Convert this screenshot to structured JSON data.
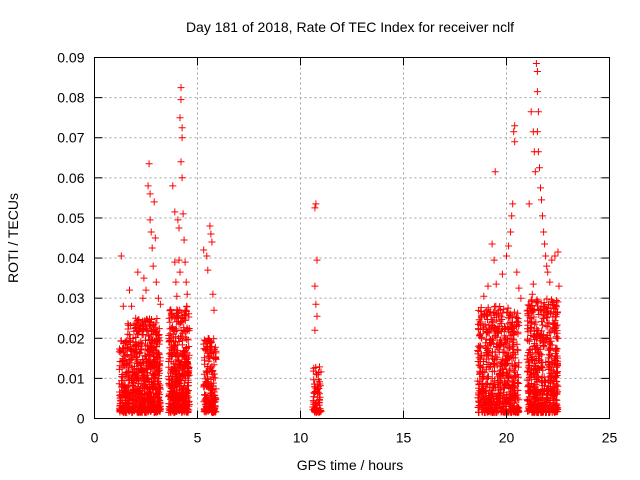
{
  "chart_data": {
    "type": "scatter",
    "title": "Day 181 of 2018, Rate Of TEC Index for receiver nclf",
    "xlabel": "GPS time / hours",
    "ylabel": "ROTI / TECUs",
    "xlim": [
      0,
      25
    ],
    "ylim": [
      0,
      0.09
    ],
    "xticks": [
      0,
      5,
      10,
      15,
      20,
      25
    ],
    "yticks": [
      0,
      0.01,
      0.02,
      0.03,
      0.04,
      0.05,
      0.06,
      0.07,
      0.08,
      0.09
    ],
    "ytick_labels": [
      "0",
      "0.01",
      "0.02",
      "0.03",
      "0.04",
      "0.05",
      "0.06",
      "0.07",
      "0.08",
      "0.09"
    ],
    "xtick_labels": [
      "0",
      "5",
      "10",
      "15",
      "20",
      "25"
    ],
    "grid": true,
    "marker": "+",
    "color": "#ff0000",
    "clusters": [
      {
        "x_range": [
          1.2,
          1.6
        ],
        "y_max": 0.02,
        "count": 120
      },
      {
        "x_range": [
          1.6,
          2.0
        ],
        "y_max": 0.024,
        "count": 120
      },
      {
        "x_range": [
          2.0,
          3.2
        ],
        "y_max": 0.025,
        "count": 480
      },
      {
        "x_range": [
          3.6,
          4.6
        ],
        "y_max": 0.028,
        "count": 420
      },
      {
        "x_range": [
          5.3,
          5.9
        ],
        "y_max": 0.02,
        "count": 180
      },
      {
        "x_range": [
          10.6,
          11.0
        ],
        "y_max": 0.013,
        "count": 70
      },
      {
        "x_range": [
          18.6,
          19.6
        ],
        "y_max": 0.028,
        "count": 300
      },
      {
        "x_range": [
          19.6,
          20.6
        ],
        "y_max": 0.028,
        "count": 320
      },
      {
        "x_range": [
          21.0,
          22.5
        ],
        "y_max": 0.03,
        "count": 560
      }
    ],
    "sparse_points": [
      [
        1.3,
        0.0405
      ],
      [
        1.4,
        0.028
      ],
      [
        1.7,
        0.032
      ],
      [
        1.8,
        0.028
      ],
      [
        2.0,
        0.025
      ],
      [
        2.1,
        0.0365
      ],
      [
        2.1,
        0.0245
      ],
      [
        2.35,
        0.03
      ],
      [
        2.4,
        0.035
      ],
      [
        2.5,
        0.032
      ],
      [
        2.6,
        0.058
      ],
      [
        2.65,
        0.0635
      ],
      [
        2.7,
        0.056
      ],
      [
        2.7,
        0.0495
      ],
      [
        2.75,
        0.0465
      ],
      [
        2.8,
        0.0425
      ],
      [
        2.85,
        0.038
      ],
      [
        2.9,
        0.054
      ],
      [
        2.95,
        0.045
      ],
      [
        3.0,
        0.034
      ],
      [
        3.1,
        0.03
      ],
      [
        3.2,
        0.0285
      ],
      [
        3.8,
        0.058
      ],
      [
        3.9,
        0.0515
      ],
      [
        3.9,
        0.039
      ],
      [
        3.95,
        0.034
      ],
      [
        4.0,
        0.0305
      ],
      [
        4.05,
        0.0495
      ],
      [
        4.1,
        0.0475
      ],
      [
        4.1,
        0.0395
      ],
      [
        4.15,
        0.0365
      ],
      [
        4.15,
        0.075
      ],
      [
        4.2,
        0.0825
      ],
      [
        4.2,
        0.0795
      ],
      [
        4.25,
        0.0725
      ],
      [
        4.25,
        0.07
      ],
      [
        4.2,
        0.064
      ],
      [
        4.25,
        0.06
      ],
      [
        4.3,
        0.051
      ],
      [
        4.35,
        0.0445
      ],
      [
        4.4,
        0.039
      ],
      [
        4.45,
        0.034
      ],
      [
        4.5,
        0.031
      ],
      [
        5.3,
        0.042
      ],
      [
        5.45,
        0.0405
      ],
      [
        5.5,
        0.037
      ],
      [
        5.6,
        0.048
      ],
      [
        5.65,
        0.046
      ],
      [
        5.7,
        0.044
      ],
      [
        5.75,
        0.031
      ],
      [
        5.8,
        0.027
      ],
      [
        10.7,
        0.0525
      ],
      [
        10.75,
        0.0535
      ],
      [
        10.8,
        0.0395
      ],
      [
        10.7,
        0.033
      ],
      [
        10.75,
        0.0285
      ],
      [
        10.8,
        0.0255
      ],
      [
        10.7,
        0.022
      ],
      [
        18.9,
        0.0305
      ],
      [
        19.1,
        0.033
      ],
      [
        19.3,
        0.0435
      ],
      [
        19.4,
        0.0395
      ],
      [
        19.45,
        0.0615
      ],
      [
        19.5,
        0.0335
      ],
      [
        19.8,
        0.036
      ],
      [
        20.0,
        0.0405
      ],
      [
        20.1,
        0.043
      ],
      [
        20.2,
        0.0465
      ],
      [
        20.25,
        0.0505
      ],
      [
        20.3,
        0.0535
      ],
      [
        20.35,
        0.0715
      ],
      [
        20.4,
        0.073
      ],
      [
        20.4,
        0.069
      ],
      [
        20.5,
        0.0365
      ],
      [
        20.6,
        0.0325
      ],
      [
        20.7,
        0.03
      ],
      [
        21.1,
        0.0535
      ],
      [
        21.2,
        0.0765
      ],
      [
        21.3,
        0.0715
      ],
      [
        21.35,
        0.0665
      ],
      [
        21.4,
        0.0615
      ],
      [
        21.45,
        0.0885
      ],
      [
        21.5,
        0.0865
      ],
      [
        21.5,
        0.0815
      ],
      [
        21.55,
        0.0765
      ],
      [
        21.5,
        0.0715
      ],
      [
        21.55,
        0.0665
      ],
      [
        21.6,
        0.0625
      ],
      [
        21.65,
        0.0575
      ],
      [
        21.7,
        0.0545
      ],
      [
        21.75,
        0.0505
      ],
      [
        21.8,
        0.0465
      ],
      [
        21.85,
        0.0435
      ],
      [
        21.9,
        0.0405
      ],
      [
        21.95,
        0.038
      ],
      [
        22.0,
        0.0365
      ],
      [
        22.1,
        0.034
      ],
      [
        22.2,
        0.0395
      ],
      [
        22.35,
        0.0405
      ],
      [
        22.5,
        0.0415
      ],
      [
        22.55,
        0.033
      ],
      [
        21.3,
        0.0335
      ],
      [
        21.25,
        0.031
      ]
    ]
  }
}
